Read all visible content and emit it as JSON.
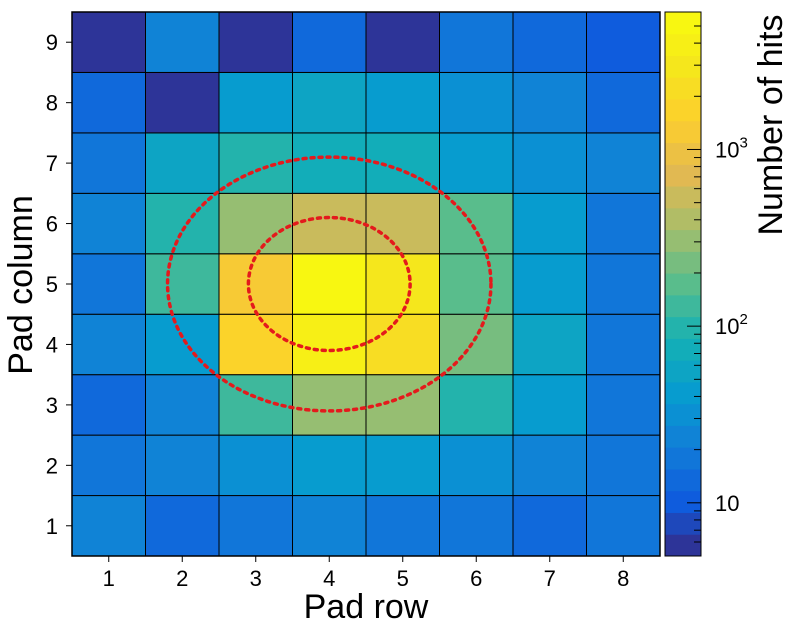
{
  "chart_data": {
    "type": "heatmap",
    "xlabel": "Pad row",
    "ylabel": "Pad column",
    "colorbar_label": "Number of hits",
    "x_categories": [
      "1",
      "2",
      "3",
      "4",
      "5",
      "6",
      "7",
      "8"
    ],
    "y_categories": [
      "1",
      "2",
      "3",
      "4",
      "5",
      "6",
      "7",
      "8",
      "9"
    ],
    "z_scale": "log",
    "z_range": [
      5,
      6000
    ],
    "colorbar_ticks": [
      {
        "value": 10,
        "label": "10"
      },
      {
        "value": 100,
        "label": "10",
        "sup": "2"
      },
      {
        "value": 1000,
        "label": "10",
        "sup": "3"
      }
    ],
    "values": [
      [
        22,
        14,
        20,
        22,
        20,
        19,
        15,
        17
      ],
      [
        17,
        22,
        35,
        40,
        40,
        34,
        26,
        20
      ],
      [
        15,
        25,
        140,
        320,
        300,
        90,
        40,
        20
      ],
      [
        22,
        45,
        1800,
        4200,
        2200,
        250,
        50,
        16
      ],
      [
        20,
        120,
        1200,
        5500,
        2600,
        180,
        45,
        20
      ],
      [
        24,
        110,
        350,
        560,
        520,
        160,
        40,
        20
      ],
      [
        20,
        55,
        90,
        85,
        75,
        45,
        34,
        22
      ],
      [
        15,
        6,
        45,
        50,
        45,
        30,
        26,
        15
      ],
      [
        6,
        22,
        6,
        15,
        6,
        20,
        14,
        10
      ]
    ],
    "annotations": [
      {
        "type": "ellipse",
        "style": "dotted",
        "color": "#e41a1c",
        "center": [
          4,
          5
        ],
        "rx": 1.1,
        "ry": 1.1
      },
      {
        "type": "ellipse",
        "style": "dotted",
        "color": "#e41a1c",
        "center": [
          4,
          5
        ],
        "rx": 2.2,
        "ry": 2.1
      }
    ]
  }
}
